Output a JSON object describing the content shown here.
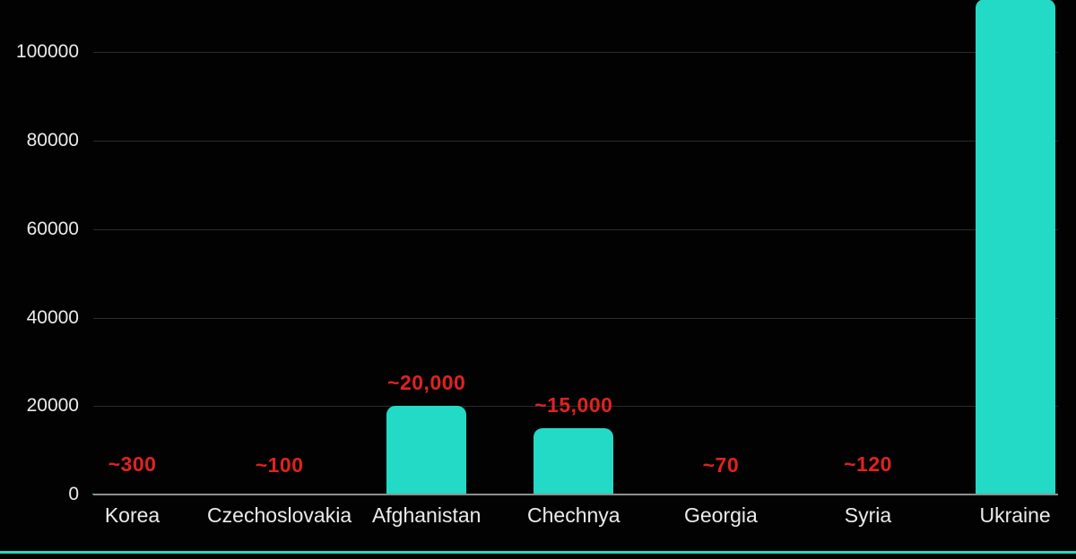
{
  "chart_data": {
    "type": "bar",
    "title": "",
    "categories": [
      "Korea",
      "Czechoslovakia",
      "Afghanistan",
      "Chechnya",
      "Georgia",
      "Syria",
      "Ukraine"
    ],
    "values": [
      300,
      100,
      20000,
      15000,
      70,
      120,
      112000
    ],
    "value_labels": [
      "~300",
      "~100",
      "~20,000",
      "~15,000",
      "~70",
      "~120",
      ""
    ],
    "ukraine_bar_clipped_at_top": true,
    "y_ticks": [
      0,
      20000,
      40000,
      60000,
      80000,
      100000
    ],
    "y_tick_labels": [
      "0",
      "20000",
      "40000",
      "60000",
      "80000",
      "100000"
    ],
    "ylim": [
      0,
      111800
    ],
    "xlabel": "",
    "ylabel": "",
    "grid": true,
    "legend": false,
    "colors": {
      "background": "#020202",
      "bar": "#23dac6",
      "value_label": "#e02222",
      "axis_text": "#ebebeb",
      "gridline": "#2b2b2b",
      "axis_line": "#8f8f8f",
      "bottom_border": "#23dac6"
    }
  }
}
